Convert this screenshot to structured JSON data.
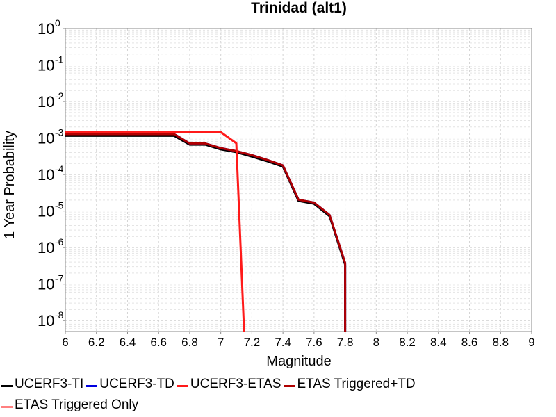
{
  "chart_data": {
    "type": "line",
    "title": "Trinidad (alt1)",
    "xlabel": "Magnitude",
    "ylabel": "1 Year Probability",
    "xlim": [
      6,
      9
    ],
    "ylim_exp": [
      -8.3,
      0
    ],
    "y_scale": "log",
    "grid": true,
    "legend_position": "bottom",
    "x_ticks": [
      "6",
      "6.2",
      "6.4",
      "6.6",
      "6.8",
      "7",
      "7.2",
      "7.4",
      "7.6",
      "7.8",
      "8",
      "8.2",
      "8.4",
      "8.6",
      "8.8",
      "9"
    ],
    "y_tick_exponents": [
      "0",
      "-1",
      "-2",
      "-3",
      "-4",
      "-5",
      "-6",
      "-7",
      "-8"
    ],
    "y_tick_base": "10",
    "series": [
      {
        "name": "UCERF3-TI",
        "color": "#000000",
        "x": [
          6.0,
          6.1,
          6.2,
          6.3,
          6.4,
          6.5,
          6.6,
          6.7,
          6.8,
          6.9,
          7.0,
          7.1,
          7.2,
          7.3,
          7.4,
          7.5,
          7.6,
          7.7,
          7.8,
          7.8
        ],
        "y": [
          0.00115,
          0.00115,
          0.00115,
          0.00115,
          0.00115,
          0.00115,
          0.00115,
          0.00115,
          0.00066,
          0.00066,
          0.00049,
          0.00041,
          0.00031,
          0.00023,
          0.000165,
          1.9e-05,
          1.58e-05,
          7.2e-06,
          3.4e-07,
          1.2e-09
        ]
      },
      {
        "name": "UCERF3-TD",
        "color": "#0000e0",
        "x": [
          6.0,
          6.1,
          6.2,
          6.3,
          6.4,
          6.5,
          6.6,
          6.7,
          6.8,
          6.9,
          7.0,
          7.1,
          7.2,
          7.3,
          7.4,
          7.5,
          7.6,
          7.7,
          7.8,
          7.8
        ],
        "y": [
          0.00128,
          0.00128,
          0.00128,
          0.00128,
          0.00128,
          0.00128,
          0.00128,
          0.00128,
          0.00071,
          0.00071,
          0.00053,
          0.00044,
          0.00034,
          0.00025,
          0.000178,
          2.05e-05,
          1.7e-05,
          7.8e-06,
          3.8e-07,
          1.2e-09
        ]
      },
      {
        "name": "UCERF3-ETAS",
        "color": "#ff1a1a",
        "x": [
          6.0,
          6.1,
          6.2,
          6.3,
          6.4,
          6.5,
          6.6,
          6.7,
          6.8,
          6.9,
          7.0,
          7.1,
          7.15
        ],
        "y": [
          0.00145,
          0.00145,
          0.00145,
          0.00145,
          0.00145,
          0.00145,
          0.00145,
          0.00145,
          0.00145,
          0.00145,
          0.00145,
          0.00072,
          1.2e-09
        ]
      },
      {
        "name": "ETAS Triggered+TD",
        "color": "#b00000",
        "x": [
          6.0,
          6.1,
          6.2,
          6.3,
          6.4,
          6.5,
          6.6,
          6.7,
          6.8,
          6.9,
          7.0,
          7.1,
          7.2,
          7.3,
          7.4,
          7.5,
          7.6,
          7.7,
          7.8,
          7.8
        ],
        "y": [
          0.00128,
          0.00128,
          0.00128,
          0.00128,
          0.00128,
          0.00128,
          0.00128,
          0.00128,
          0.00071,
          0.00071,
          0.00053,
          0.00044,
          0.00034,
          0.00025,
          0.000178,
          2.05e-05,
          1.7e-05,
          7.8e-06,
          3.8e-07,
          1.2e-09
        ]
      },
      {
        "name": "ETAS Triggered Only",
        "color": "#ff8080",
        "x": [],
        "y": []
      }
    ]
  }
}
